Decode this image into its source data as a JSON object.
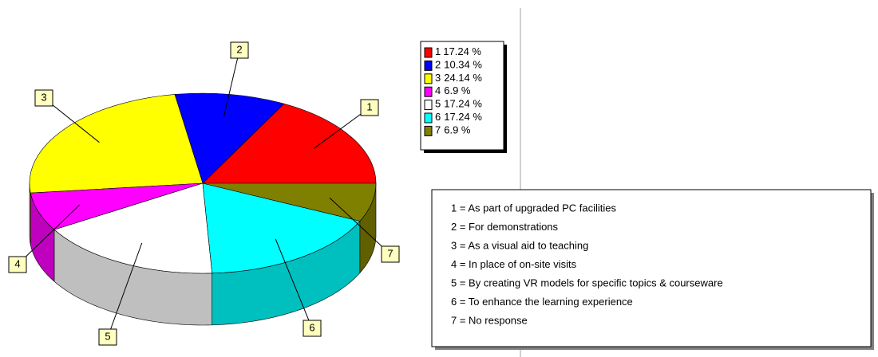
{
  "chart_data": {
    "type": "pie3d",
    "categories": [
      "1",
      "2",
      "3",
      "4",
      "5",
      "6",
      "7"
    ],
    "values": [
      17.24,
      10.34,
      24.14,
      6.9,
      17.24,
      17.24,
      6.9
    ],
    "value_labels": [
      "17.24 %",
      "10.34 %",
      "24.14 %",
      "6.9 %",
      "17.24 %",
      "17.24 %",
      "6.9 %"
    ],
    "colors": [
      "#ff0000",
      "#0000ff",
      "#ffff00",
      "#ff00ff",
      "#ffffff",
      "#00ffff",
      "#808000"
    ],
    "legend": "top-right"
  },
  "key": [
    "1 = As part of upgraded PC facilities",
    "2 = For demonstrations",
    "3 = As a visual aid to teaching",
    "4 = In place of on-site visits",
    "5 = By creating VR models for specific topics & courseware",
    "6 = To enhance the learning experience",
    "7 = No response"
  ]
}
